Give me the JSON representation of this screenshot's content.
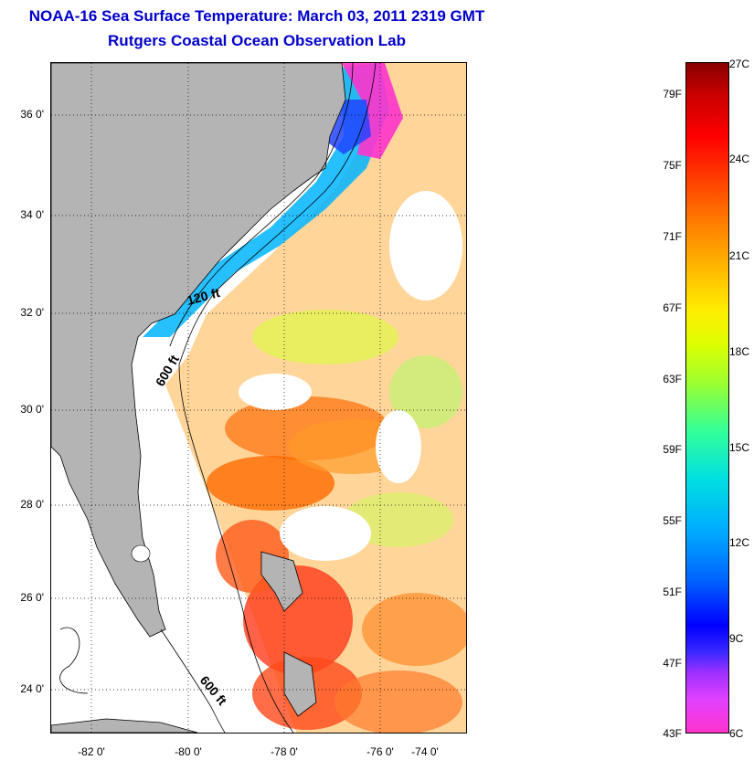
{
  "header": {
    "title": "NOAA-16 Sea Surface Temperature:  March 03, 2011 2319 GMT",
    "subtitle": "Rutgers Coastal Ocean Observation Lab"
  },
  "map": {
    "latitude_labels": [
      "36 0'",
      "34 0'",
      "32 0'",
      "30 0'",
      "28 0'",
      "26 0'",
      "24 0'"
    ],
    "longitude_labels": [
      "-82 0'",
      "-80 0'",
      "-78 0'",
      "-76 0'",
      "-74 0'"
    ],
    "contour_labels": [
      "120 ft",
      "600 ft",
      "600 ft"
    ],
    "land_color": "#b4b4b4",
    "cloud_color": "#ffffff"
  },
  "colorbar": {
    "fahrenheit_labels": [
      "79F",
      "75F",
      "71F",
      "67F",
      "63F",
      "59F",
      "55F",
      "51F",
      "47F",
      "43F"
    ],
    "celsius_labels": [
      "27C",
      "24C",
      "21C",
      "18C",
      "15C",
      "12C",
      "9C",
      "6C"
    ]
  }
}
